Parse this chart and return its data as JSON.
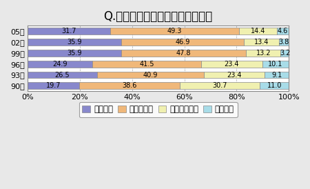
{
  "title": "Q.健康に関する記事を読むこと。",
  "years": [
    "05年",
    "02年",
    "99年",
    "96年",
    "93年",
    "90年"
  ],
  "categories": [
    "よくある",
    "たまにある",
    "ほとんどない",
    "全くない"
  ],
  "colors": [
    "#8888cc",
    "#f0b87a",
    "#f0f0b0",
    "#a8dce8"
  ],
  "data": [
    [
      31.7,
      49.3,
      14.4,
      4.6
    ],
    [
      35.9,
      46.9,
      13.4,
      3.8
    ],
    [
      35.9,
      47.8,
      13.2,
      3.2
    ],
    [
      24.9,
      41.5,
      23.4,
      10.1
    ],
    [
      26.5,
      40.9,
      23.4,
      9.1
    ],
    [
      19.7,
      38.6,
      30.7,
      11.0
    ]
  ],
  "bar_edge_color": "#888888",
  "bar_linewidth": 0.5,
  "background_color": "#e8e8e8",
  "plot_bg_color": "#ffffff",
  "title_fontsize": 12,
  "legend_fontsize": 8.5,
  "tick_fontsize": 8,
  "bar_height": 0.62
}
